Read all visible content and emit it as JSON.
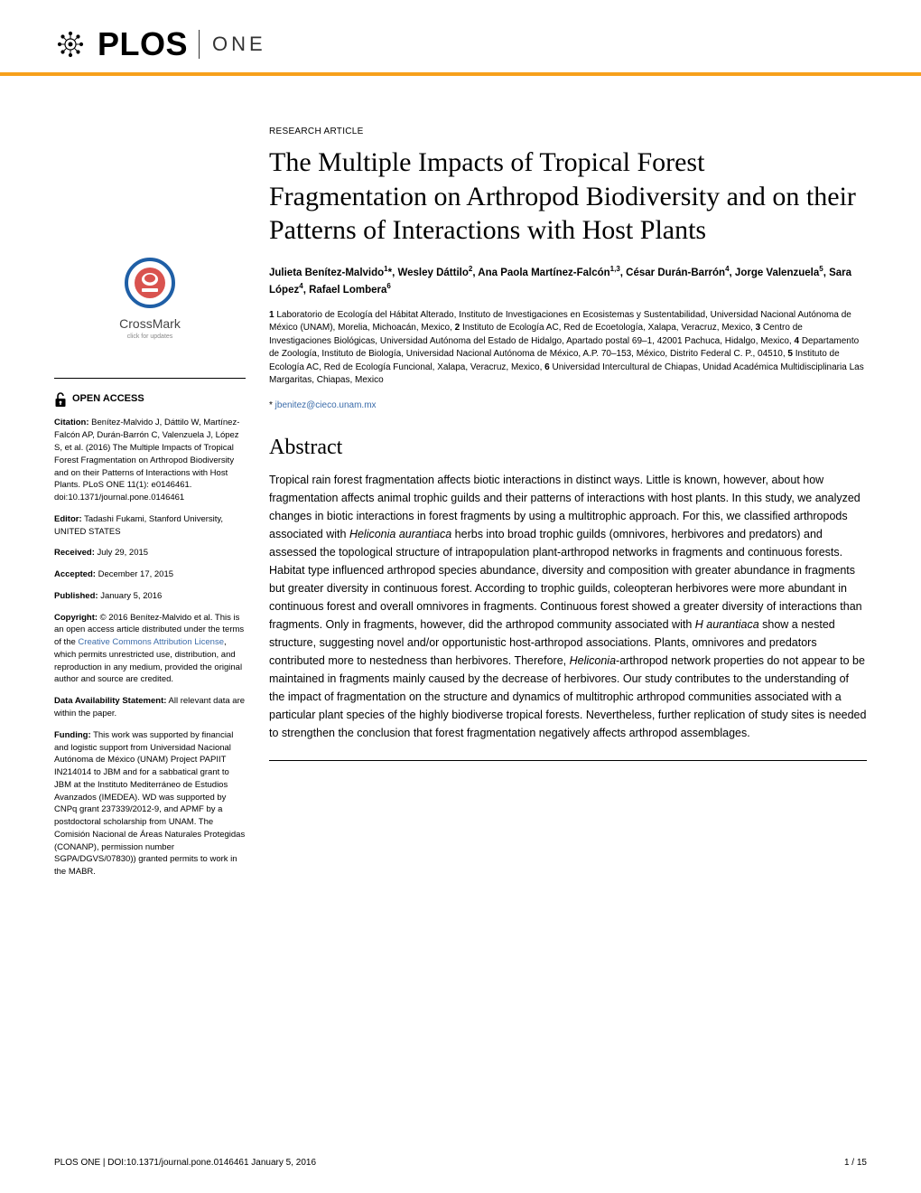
{
  "journal": {
    "logo_text": "PLOS",
    "subtitle": "ONE"
  },
  "crossmark": {
    "label": "CrossMark",
    "sub": "click for updates"
  },
  "sidebar": {
    "open_access": "OPEN ACCESS",
    "citation_label": "Citation:",
    "citation": " Benítez-Malvido J, Dáttilo W, Martínez-Falcón AP, Durán-Barrón C, Valenzuela J, López S, et al. (2016) The Multiple Impacts of Tropical Forest Fragmentation on Arthropod Biodiversity and on their Patterns of Interactions with Host Plants. PLoS ONE 11(1): e0146461. doi:10.1371/journal.pone.0146461",
    "editor_label": "Editor:",
    "editor": " Tadashi Fukami, Stanford University, UNITED STATES",
    "received_label": "Received:",
    "received": " July 29, 2015",
    "accepted_label": "Accepted:",
    "accepted": " December 17, 2015",
    "published_label": "Published:",
    "published": " January 5, 2016",
    "copyright_label": "Copyright:",
    "copyright_a": " © 2016 Benítez-Malvido et al. This is an open access article distributed under the terms of the ",
    "cc_link": "Creative Commons Attribution License",
    "copyright_b": ", which permits unrestricted use, distribution, and reproduction in any medium, provided the original author and source are credited.",
    "data_label": "Data Availability Statement:",
    "data": " All relevant data are within the paper.",
    "funding_label": "Funding:",
    "funding": " This work was supported by financial and logistic support from Universidad Nacional Autónoma de México (UNAM) Project PAPIIT IN214014 to JBM and for a sabbatical grant to JBM at the Instituto Mediterráneo de Estudios Avanzados (IMEDEA). WD was supported by CNPq grant 237339/2012-9, and APMF by a postdoctoral scholarship from UNAM. The Comisión Nacional de Áreas Naturales Protegidas (CONANP), permission number SGPA/DGVS/07830)) granted permits to work in the MABR."
  },
  "article": {
    "type": "RESEARCH ARTICLE",
    "title": "The Multiple Impacts of Tropical Forest Fragmentation on Arthropod Biodiversity and on their Patterns of Interactions with Host Plants",
    "authors_html": "Julieta Benítez-Malvido<sup>1</sup>*, Wesley Dáttilo<sup>2</sup>, Ana Paola Martínez-Falcón<sup>1,3</sup>, César Durán-Barrón<sup>4</sup>, Jorge Valenzuela<sup>5</sup>, Sara López<sup>4</sup>, Rafael Lombera<sup>6</sup>",
    "affiliations_html": "<b>1</b> Laboratorio de Ecología del Hábitat Alterado, Instituto de Investigaciones en Ecosistemas y Sustentabilidad, Universidad Nacional Autónoma de México (UNAM), Morelia, Michoacán, Mexico, <b>2</b> Instituto de Ecología AC, Red de Ecoetología, Xalapa, Veracruz, Mexico, <b>3</b> Centro de Investigaciones Biológicas, Universidad Autónoma del Estado de Hidalgo, Apartado postal 69–1, 42001 Pachuca, Hidalgo, Mexico, <b>4</b> Departamento de Zoología, Instituto de Biología, Universidad Nacional Autónoma de México, A.P. 70–153, México, Distrito Federal C. P., 04510, <b>5</b> Instituto de Ecología AC, Red de Ecología Funcional, Xalapa, Veracruz, Mexico, <b>6</b> Universidad Intercultural de Chiapas, Unidad Académica Multidisciplinaria Las Margaritas, Chiapas, Mexico",
    "corr_star": "* ",
    "corr_email": "jbenitez@cieco.unam.mx",
    "abstract_heading": "Abstract",
    "abstract_html": "Tropical rain forest fragmentation affects biotic interactions in distinct ways. Little is known, however, about how fragmentation affects animal trophic guilds and their patterns of interactions with host plants. In this study, we analyzed changes in biotic interactions in forest fragments by using a multitrophic approach. For this, we classified arthropods associated with <i>Heliconia aurantiaca</i> herbs into broad trophic guilds (omnivores, herbivores and predators) and assessed the topological structure of intrapopulation plant-arthropod networks in fragments and continuous forests. Habitat type influenced arthropod species abundance, diversity and composition with greater abundance in fragments but greater diversity in continuous forest. According to trophic guilds, coleopteran herbivores were more abundant in continuous forest and overall omnivores in fragments. Continuous forest showed a greater diversity of interactions than fragments. Only in fragments, however, did the arthropod community associated with <i>H aurantiaca</i> show a nested structure, suggesting novel and/or opportunistic host-arthropod associations. Plants, omnivores and predators contributed more to nestedness than herbivores. Therefore, <i>Heliconia</i>-arthropod network properties do not appear to be maintained in fragments mainly caused by the decrease of herbivores. Our study contributes to the understanding of the impact of fragmentation on the structure and dynamics of multitrophic arthropod communities associated with a particular plant species of the highly biodiverse tropical forests. Nevertheless, further replication of study sites is needed to strengthen the conclusion that forest fragmentation negatively affects arthropod assemblages."
  },
  "footer": {
    "left": "PLOS ONE | DOI:10.1371/journal.pone.0146461    January 5, 2016",
    "right": "1 / 15"
  },
  "colors": {
    "accent": "#f7a01b",
    "link": "#3b6caa",
    "crossmark_ring": "#1f5fa6",
    "crossmark_inner": "#d9534f"
  }
}
